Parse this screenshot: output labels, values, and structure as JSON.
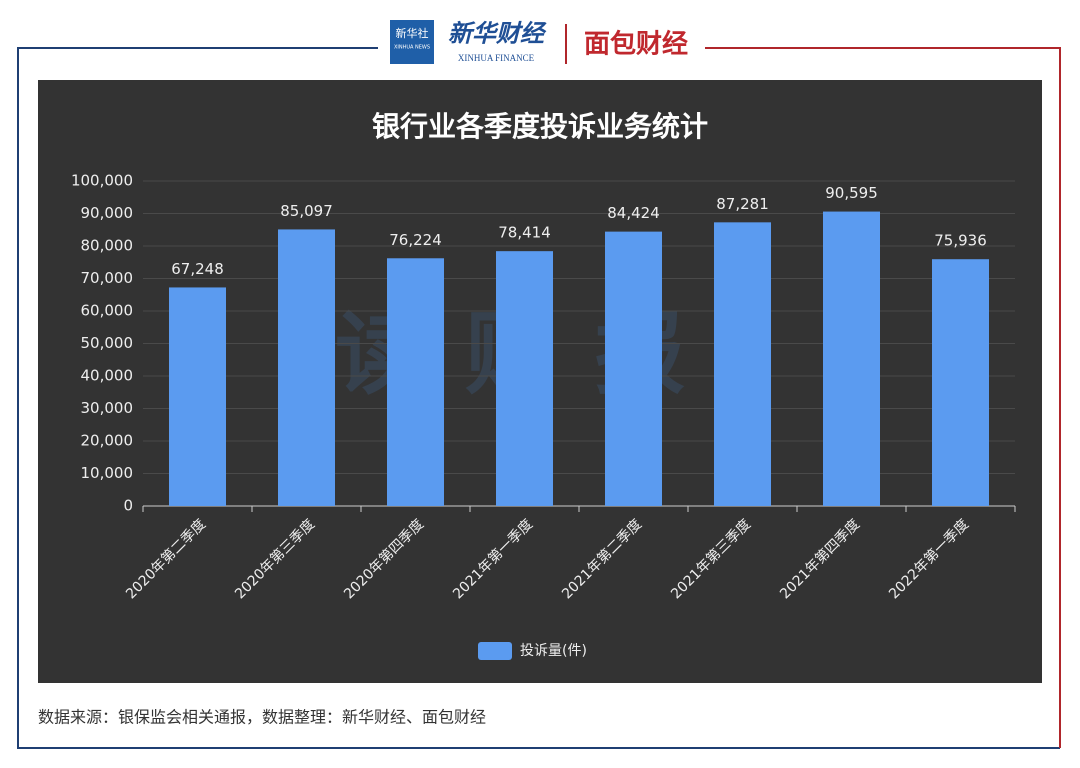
{
  "header": {
    "logo_agency": "新华社",
    "logo_agency_en": "XINHUA NEWS",
    "logo_finance": "新华财经",
    "logo_finance_en": "XINHUA FINANCE",
    "logo_partner": "面包财经"
  },
  "chart_data": {
    "type": "bar",
    "title": "银行业各季度投诉业务统计",
    "watermark": "读财报",
    "categories": [
      "2020年第二季度",
      "2020年第三季度",
      "2020年第四季度",
      "2021年第一季度",
      "2021年第二季度",
      "2021年第三季度",
      "2021年第四季度",
      "2022年第一季度"
    ],
    "series": [
      {
        "name": "投诉量(件)",
        "color": "#5b9bf0",
        "values": [
          67248,
          85097,
          76224,
          78414,
          84424,
          87281,
          90595,
          75936
        ],
        "value_labels": [
          "67,248",
          "85,097",
          "76,224",
          "78,414",
          "84,424",
          "87,281",
          "90,595",
          "75,936"
        ]
      }
    ],
    "ylim": [
      0,
      100000
    ],
    "yticks": [
      0,
      {
        "value": 10000,
        "label": "10,000"
      },
      {
        "value": 20000,
        "label": "20,000"
      },
      {
        "value": 30000,
        "label": "30,000"
      },
      {
        "value": 40000,
        "label": "40,000"
      },
      {
        "value": 50000,
        "label": "50,000"
      },
      {
        "value": 60000,
        "label": "60,000"
      },
      {
        "value": 70000,
        "label": "70,000"
      },
      {
        "value": 80000,
        "label": "80,000"
      },
      {
        "value": 90000,
        "label": "90,000"
      },
      {
        "value": 100000,
        "label": "100,000"
      }
    ],
    "grid": true,
    "legend": "bottom"
  },
  "footer": {
    "source": "数据来源：银保监会相关通报，数据整理：新华财经、面包财经"
  }
}
